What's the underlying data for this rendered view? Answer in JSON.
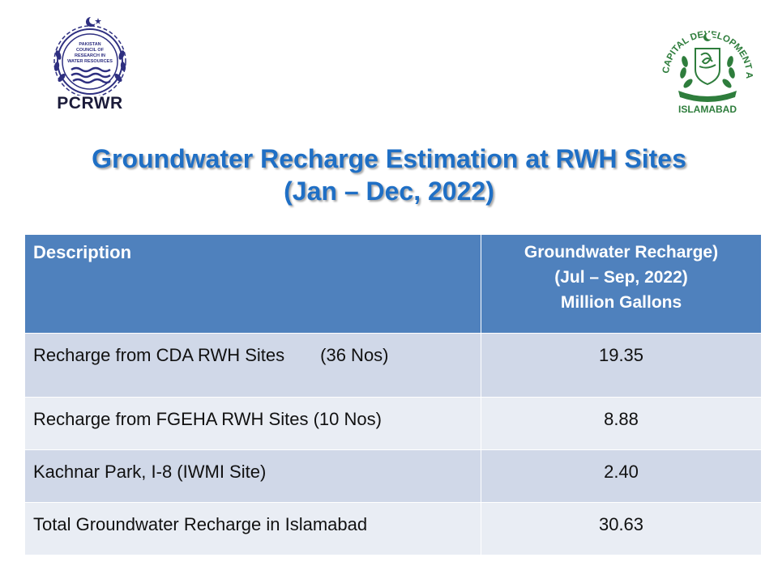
{
  "logos": {
    "left": {
      "acronym": "PCRWR",
      "seal_text": [
        "PAKISTAN",
        "COUNCIL OF",
        "RESEARCH IN",
        "WATER RESOURCES"
      ]
    },
    "right": {
      "ring_text": "CAPITAL DEVELOPMENT AUTHORITY",
      "bottom_text": "ISLAMABAD"
    }
  },
  "title": {
    "line1": "Groundwater Recharge Estimation at RWH Sites",
    "line2": "(Jan – Dec, 2022)"
  },
  "table": {
    "headers": {
      "description": "Description",
      "recharge": [
        "Groundwater Recharge)",
        "(Jul – Sep, 2022)",
        "Million Gallons"
      ]
    },
    "rows": [
      {
        "description": "Recharge from CDA RWH Sites",
        "count": "(36 Nos)",
        "value": "19.35"
      },
      {
        "description": "Recharge from FGEHA RWH Sites (10 Nos)",
        "count": "",
        "value": "8.88"
      },
      {
        "description": "Kachnar Park, I-8 (IWMI Site)",
        "count": "",
        "value": "2.40"
      },
      {
        "description": "Total Groundwater Recharge in Islamabad",
        "count": "",
        "value": "30.63"
      }
    ]
  },
  "colors": {
    "title": "#1f6fc5",
    "header_bg": "#4f81bd",
    "row_odd": "#d0d8e8",
    "row_even": "#e9edf4",
    "cda_green": "#2e7d3c",
    "pcrwr_navy": "#2e2f80"
  }
}
